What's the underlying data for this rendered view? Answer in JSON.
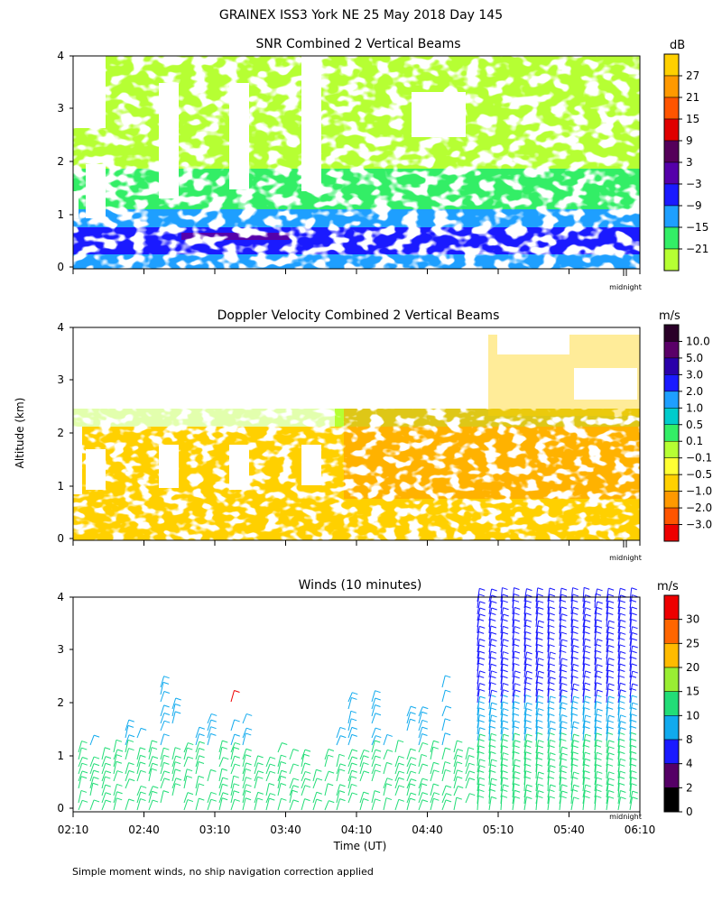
{
  "header": {
    "title": "GRAINEX ISS3 York NE  25 May 2018 Day 145"
  },
  "footer": {
    "note": "Simple moment winds, no ship navigation correction applied"
  },
  "shared": {
    "ylabel": "Altitude (km)",
    "xlabel": "Time (UT)",
    "midnight_label": "midnight",
    "x_ticks": [
      "02:10",
      "02:40",
      "03:10",
      "03:40",
      "04:10",
      "04:40",
      "05:10",
      "05:40",
      "06:10"
    ],
    "y_ticks": [
      "0",
      "1",
      "2",
      "3",
      "4"
    ]
  },
  "chart_data": [
    {
      "type": "heatmap",
      "title": "SNR Combined 2 Vertical Beams",
      "xlabel": "Time (UT)",
      "ylabel": "Altitude (km)",
      "xlim": [
        "02:10",
        "06:10"
      ],
      "ylim": [
        0,
        4
      ],
      "colorbar": {
        "unit": "dB",
        "labels": [
          "27",
          "21",
          "15",
          "9",
          "3",
          "−3",
          "−9",
          "−15",
          "−21"
        ],
        "colors": [
          "#ffd000",
          "#ff9900",
          "#ff5500",
          "#e00000",
          "#55005a",
          "#5500aa",
          "#1a1aff",
          "#1e9fff",
          "#33ee66",
          "#b6ff33"
        ]
      }
    },
    {
      "type": "heatmap",
      "title": "Doppler Velocity Combined 2 Vertical Beams",
      "xlabel": "Time (UT)",
      "ylabel": "Altitude (km)",
      "xlim": [
        "02:10",
        "06:10"
      ],
      "ylim": [
        0,
        4
      ],
      "colorbar": {
        "unit": "m/s",
        "labels": [
          "10.0",
          "5.0",
          "3.0",
          "2.0",
          "1.0",
          "0.5",
          "0.1",
          "−0.1",
          "−0.5",
          "−1.0",
          "−2.0",
          "−3.0"
        ],
        "colors": [
          "#2a0028",
          "#5a0068",
          "#2a00aa",
          "#1a1aff",
          "#1e9fff",
          "#00cccc",
          "#33ee66",
          "#b6ff33",
          "#ffff33",
          "#ffd000",
          "#ff9900",
          "#ff5500",
          "#ee0000"
        ]
      }
    },
    {
      "type": "scatter",
      "title": "Winds (10 minutes)",
      "xlabel": "Time (UT)",
      "ylabel": "Altitude (km)",
      "xlim": [
        "02:10",
        "06:10"
      ],
      "ylim": [
        0,
        4
      ],
      "colorbar": {
        "unit": "m/s",
        "labels": [
          "30",
          "25",
          "20",
          "15",
          "10",
          "8",
          "4",
          "2",
          "0"
        ],
        "colors": [
          "#ee0000",
          "#ff6600",
          "#ffbb00",
          "#99ee33",
          "#22dd77",
          "#11aaee",
          "#1a1aff",
          "#550066",
          "#000000"
        ]
      }
    }
  ]
}
